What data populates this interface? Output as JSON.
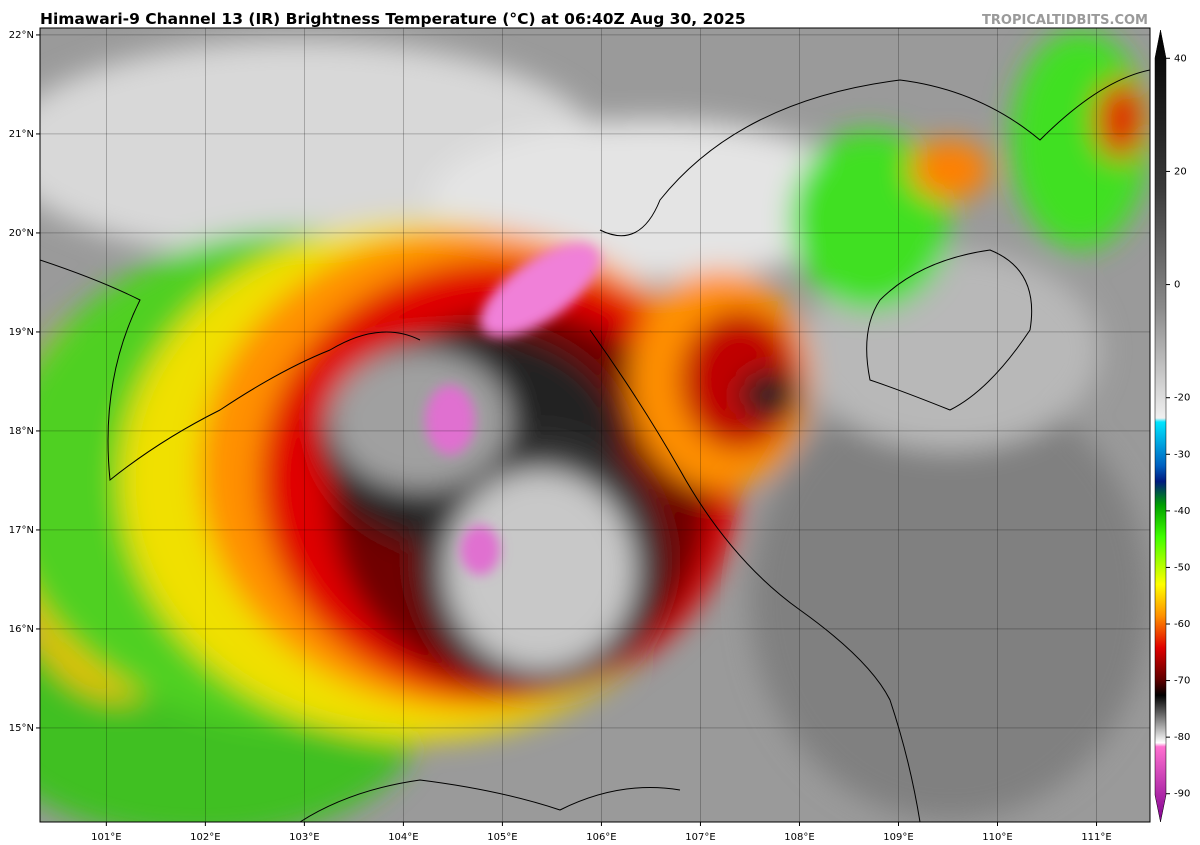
{
  "header": {
    "title": "Himawari-9 Channel 13 (IR) Brightness Temperature (°C) at 06:40Z Aug 30, 2025",
    "credit": "TROPICALTIDBITS.COM"
  },
  "map": {
    "lat_range": [
      14.05,
      22.07
    ],
    "lon_range": [
      100.33,
      111.54
    ],
    "grid": true,
    "lat_ticks": [
      {
        "value": 22,
        "label": "22°N"
      },
      {
        "value": 21,
        "label": "21°N"
      },
      {
        "value": 20,
        "label": "20°N"
      },
      {
        "value": 19,
        "label": "19°N"
      },
      {
        "value": 18,
        "label": "18°N"
      },
      {
        "value": 17,
        "label": "17°N"
      },
      {
        "value": 16,
        "label": "16°N"
      },
      {
        "value": 15,
        "label": "15°N"
      }
    ],
    "lon_ticks": [
      {
        "value": 101,
        "label": "101°E"
      },
      {
        "value": 102,
        "label": "102°E"
      },
      {
        "value": 103,
        "label": "103°E"
      },
      {
        "value": 104,
        "label": "104°E"
      },
      {
        "value": 105,
        "label": "105°E"
      },
      {
        "value": 106,
        "label": "106°E"
      },
      {
        "value": 107,
        "label": "107°E"
      },
      {
        "value": 108,
        "label": "108°E"
      },
      {
        "value": 109,
        "label": "109°E"
      },
      {
        "value": 110,
        "label": "110°E"
      },
      {
        "value": 111,
        "label": "111°E"
      }
    ]
  },
  "colorbar": {
    "range": [
      -95,
      45
    ],
    "ticks": [
      40,
      20,
      0,
      -20,
      -30,
      -40,
      -50,
      -60,
      -70,
      -80,
      -90
    ]
  }
}
